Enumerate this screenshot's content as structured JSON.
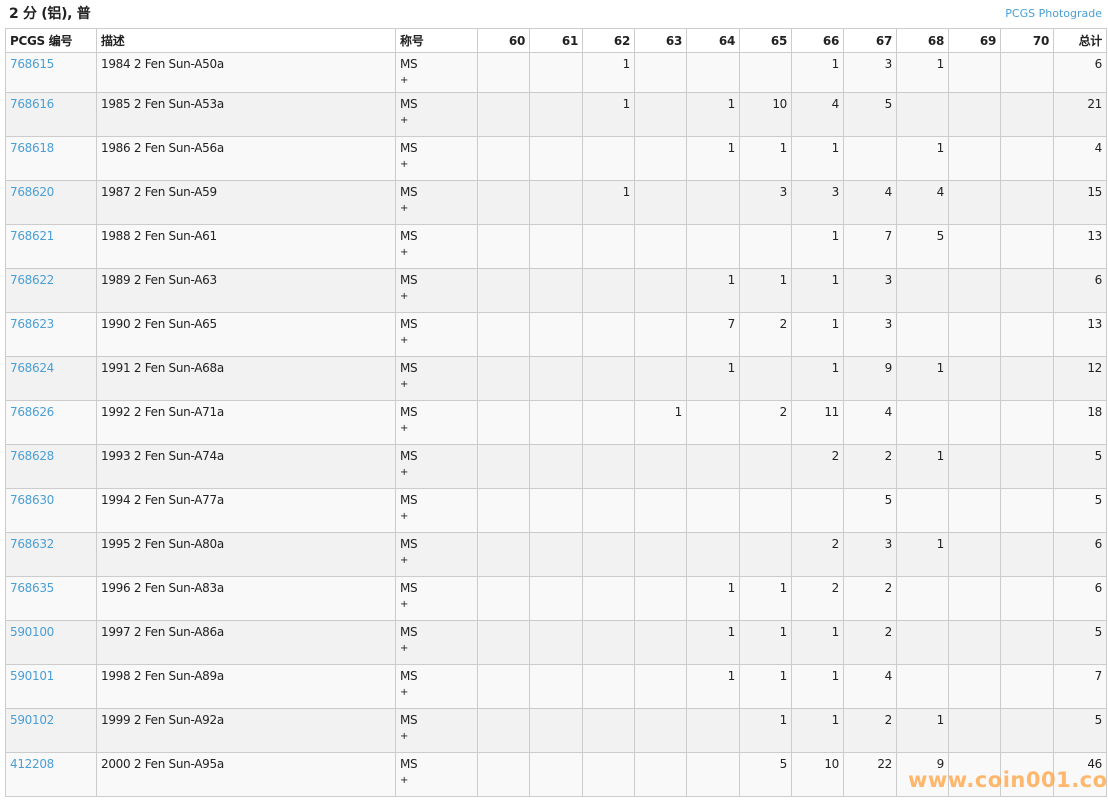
{
  "title": "2 分 (铝), 普",
  "photograde_link": "PCGS Photograde",
  "columns": [
    "PCGS 编号",
    "描述",
    "称号",
    "60",
    "61",
    "62",
    "63",
    "64",
    "65",
    "66",
    "67",
    "68",
    "69",
    "70",
    "总计"
  ],
  "rows": [
    {
      "id": "768615",
      "desc": "1984 2 Fen Sun-A50a",
      "des": "MS",
      "plus": "+",
      "g": [
        "",
        "",
        "1",
        "",
        "",
        "",
        "1",
        "3",
        "1",
        "",
        ""
      ],
      "total": "6"
    },
    {
      "id": "768616",
      "desc": "1985 2 Fen Sun-A53a",
      "des": "MS",
      "plus": "+",
      "g": [
        "",
        "",
        "1",
        "",
        "1",
        "10",
        "4",
        "5",
        "",
        "",
        ""
      ],
      "total": "21"
    },
    {
      "id": "768618",
      "desc": "1986 2 Fen Sun-A56a",
      "des": "MS",
      "plus": "+",
      "g": [
        "",
        "",
        "",
        "",
        "1",
        "1",
        "1",
        "",
        "1",
        "",
        ""
      ],
      "total": "4"
    },
    {
      "id": "768620",
      "desc": "1987 2 Fen Sun-A59",
      "des": "MS",
      "plus": "+",
      "g": [
        "",
        "",
        "1",
        "",
        "",
        "3",
        "3",
        "4",
        "4",
        "",
        ""
      ],
      "total": "15"
    },
    {
      "id": "768621",
      "desc": "1988 2 Fen Sun-A61",
      "des": "MS",
      "plus": "+",
      "g": [
        "",
        "",
        "",
        "",
        "",
        "",
        "1",
        "7",
        "5",
        "",
        ""
      ],
      "total": "13"
    },
    {
      "id": "768622",
      "desc": "1989 2 Fen Sun-A63",
      "des": "MS",
      "plus": "+",
      "g": [
        "",
        "",
        "",
        "",
        "1",
        "1",
        "1",
        "3",
        "",
        "",
        ""
      ],
      "total": "6"
    },
    {
      "id": "768623",
      "desc": "1990 2 Fen Sun-A65",
      "des": "MS",
      "plus": "+",
      "g": [
        "",
        "",
        "",
        "",
        "7",
        "2",
        "1",
        "3",
        "",
        "",
        ""
      ],
      "total": "13"
    },
    {
      "id": "768624",
      "desc": "1991 2 Fen Sun-A68a",
      "des": "MS",
      "plus": "+",
      "g": [
        "",
        "",
        "",
        "",
        "1",
        "",
        "1",
        "9",
        "1",
        "",
        ""
      ],
      "total": "12"
    },
    {
      "id": "768626",
      "desc": "1992 2 Fen Sun-A71a",
      "des": "MS",
      "plus": "+",
      "g": [
        "",
        "",
        "",
        "1",
        "",
        "2",
        "11",
        "4",
        "",
        "",
        ""
      ],
      "total": "18"
    },
    {
      "id": "768628",
      "desc": "1993 2 Fen Sun-A74a",
      "des": "MS",
      "plus": "+",
      "g": [
        "",
        "",
        "",
        "",
        "",
        "",
        "2",
        "2",
        "1",
        "",
        ""
      ],
      "total": "5"
    },
    {
      "id": "768630",
      "desc": "1994 2 Fen Sun-A77a",
      "des": "MS",
      "plus": "+",
      "g": [
        "",
        "",
        "",
        "",
        "",
        "",
        "",
        "5",
        "",
        "",
        ""
      ],
      "total": "5"
    },
    {
      "id": "768632",
      "desc": "1995 2 Fen Sun-A80a",
      "des": "MS",
      "plus": "+",
      "g": [
        "",
        "",
        "",
        "",
        "",
        "",
        "2",
        "3",
        "1",
        "",
        ""
      ],
      "total": "6"
    },
    {
      "id": "768635",
      "desc": "1996 2 Fen Sun-A83a",
      "des": "MS",
      "plus": "+",
      "g": [
        "",
        "",
        "",
        "",
        "1",
        "1",
        "2",
        "2",
        "",
        "",
        ""
      ],
      "total": "6"
    },
    {
      "id": "590100",
      "desc": "1997 2 Fen Sun-A86a",
      "des": "MS",
      "plus": "+",
      "g": [
        "",
        "",
        "",
        "",
        "1",
        "1",
        "1",
        "2",
        "",
        "",
        ""
      ],
      "total": "5"
    },
    {
      "id": "590101",
      "desc": "1998 2 Fen Sun-A89a",
      "des": "MS",
      "plus": "+",
      "g": [
        "",
        "",
        "",
        "",
        "1",
        "1",
        "1",
        "4",
        "",
        "",
        ""
      ],
      "total": "7"
    },
    {
      "id": "590102",
      "desc": "1999 2 Fen Sun-A92a",
      "des": "MS",
      "plus": "+",
      "g": [
        "",
        "",
        "",
        "",
        "",
        "1",
        "1",
        "2",
        "1",
        "",
        ""
      ],
      "total": "5"
    },
    {
      "id": "412208",
      "desc": "2000 2 Fen Sun-A95a",
      "des": "MS",
      "plus": "+",
      "g": [
        "",
        "",
        "",
        "",
        "",
        "5",
        "10",
        "22",
        "9",
        "",
        ""
      ],
      "total": "46"
    }
  ],
  "watermark": "www.coin001.com",
  "colors": {
    "link": "#4a9fd6",
    "watermark": "#ffa03c"
  }
}
